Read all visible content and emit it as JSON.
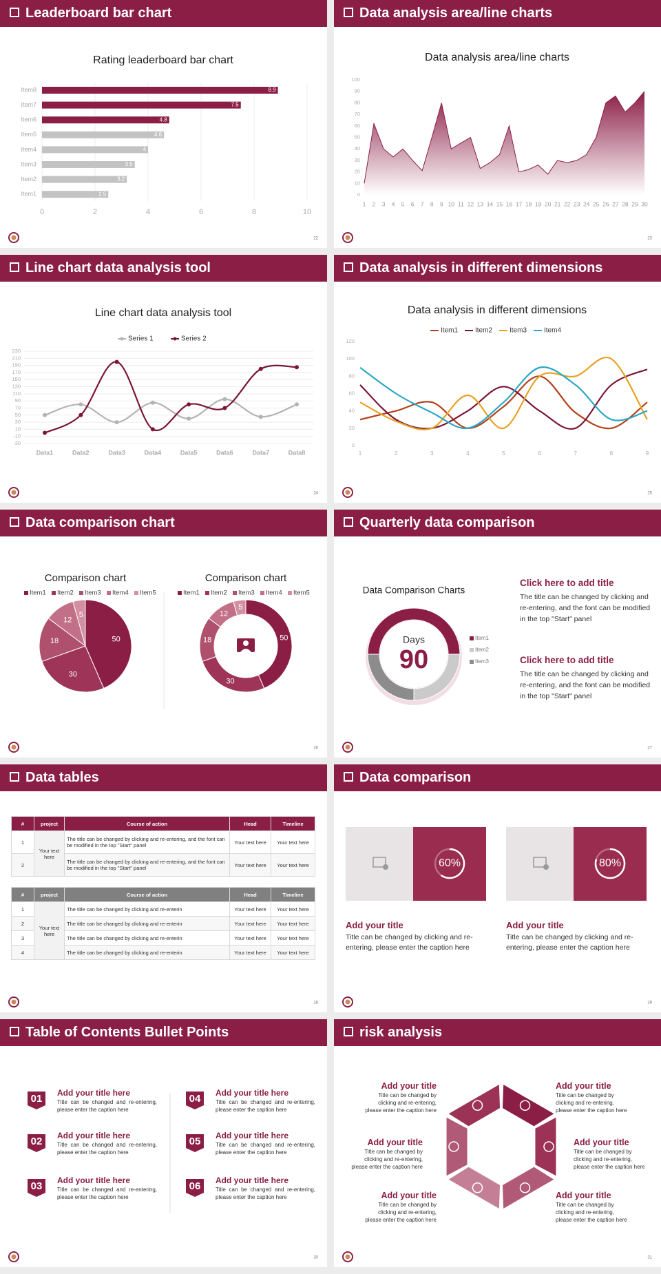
{
  "slides": [
    {
      "heading": "Leaderboard bar chart",
      "page": "22",
      "chart": {
        "type": "bar",
        "orientation": "horizontal",
        "title": "Rating leaderboard bar chart",
        "categories": [
          "Item8",
          "Item7",
          "Item6",
          "Item5",
          "Item4",
          "Item3",
          "Item2",
          "Item1"
        ],
        "values": [
          8.9,
          7.5,
          4.8,
          4.6,
          4,
          3.5,
          3.2,
          2.5
        ],
        "colors": [
          "#8b1e45",
          "#8b1e45",
          "#8b1e45",
          "#c3c3c3",
          "#c3c3c3",
          "#c3c3c3",
          "#c3c3c3",
          "#c3c3c3"
        ],
        "xlim": [
          0,
          10
        ],
        "xticks": [
          0,
          2,
          4,
          6,
          8,
          10
        ],
        "grid": true
      }
    },
    {
      "heading": "Data analysis area/line charts",
      "page": "23",
      "chart": {
        "type": "area",
        "title": "Data analysis area/line charts",
        "color": "#8b1e45",
        "categories": [
          "1",
          "2",
          "3",
          "4",
          "5",
          "6",
          "7",
          "8",
          "9",
          "10",
          "11",
          "12",
          "13",
          "14",
          "15",
          "16",
          "17",
          "18",
          "19",
          "20",
          "21",
          "22",
          "23",
          "24",
          "25",
          "26",
          "27",
          "28",
          "29",
          "30"
        ],
        "values": [
          10,
          62,
          40,
          33,
          40,
          30,
          21,
          50,
          80,
          40,
          45,
          50,
          23,
          28,
          35,
          60,
          20,
          22,
          26,
          18,
          30,
          28,
          30,
          35,
          50,
          80,
          86,
          72,
          80,
          90
        ],
        "ylim": [
          0,
          100
        ],
        "yticks": [
          0,
          10,
          20,
          30,
          40,
          50,
          60,
          70,
          80,
          90,
          100
        ]
      }
    },
    {
      "heading": "Line chart data analysis tool",
      "page": "24",
      "chart": {
        "type": "line",
        "title": "Line chart data analysis tool",
        "categories": [
          "Data1",
          "Data2",
          "Data3",
          "Data4",
          "Data5",
          "Data6",
          "Data7",
          "Data8"
        ],
        "series": [
          {
            "name": "Series 1",
            "color": "#b3b3b3",
            "values": [
              50,
              80,
              30,
              85,
              40,
              95,
              45,
              80
            ]
          },
          {
            "name": "Series 2",
            "color": "#7a1535",
            "values": [
              0,
              50,
              200,
              10,
              80,
              70,
              180,
              185
            ]
          }
        ],
        "ylim": [
          -30,
          230
        ],
        "yticks": [
          -30,
          -10,
          10,
          30,
          50,
          70,
          90,
          110,
          130,
          150,
          170,
          190,
          210,
          230
        ],
        "grid": true
      }
    },
    {
      "heading": "Data analysis in different dimensions",
      "page": "25",
      "chart": {
        "type": "line",
        "title": "Data analysis in different dimensions",
        "x": [
          1,
          2,
          3,
          4,
          5,
          6,
          7,
          8,
          9
        ],
        "xlim": [
          1,
          9
        ],
        "xticks": [
          1,
          2,
          3,
          4,
          5,
          6,
          7,
          8,
          9
        ],
        "series": [
          {
            "name": "Item1",
            "color": "#b5401b",
            "values": [
              30,
              40,
              50,
              20,
              45,
              80,
              38,
              20,
              50
            ]
          },
          {
            "name": "Item2",
            "color": "#7a1535",
            "values": [
              70,
              30,
              20,
              40,
              68,
              40,
              20,
              70,
              88
            ]
          },
          {
            "name": "Item3",
            "color": "#e8a020",
            "values": [
              50,
              28,
              20,
              58,
              20,
              80,
              80,
              100,
              30
            ]
          },
          {
            "name": "Item4",
            "color": "#2aa8c4",
            "values": [
              90,
              60,
              38,
              20,
              50,
              90,
              70,
              30,
              40
            ]
          }
        ],
        "ylim": [
          0,
          120
        ],
        "yticks": [
          0,
          20,
          40,
          60,
          80,
          100,
          120
        ],
        "grid": false
      }
    },
    {
      "heading": "Data comparison chart",
      "page": "26",
      "charts": [
        {
          "type": "pie",
          "title": "Comparison chart",
          "categories": [
            "Item1",
            "Item2",
            "Item3",
            "Item4",
            "Item5"
          ],
          "values": [
            50,
            30,
            18,
            12,
            5
          ],
          "colors": [
            "#8b1e45",
            "#9e3558",
            "#b0506f",
            "#c27087",
            "#d490a3"
          ]
        },
        {
          "type": "donut",
          "title": "Comparison chart",
          "categories": [
            "Item1",
            "Item2",
            "Item3",
            "Item4",
            "Item5"
          ],
          "values": [
            50,
            30,
            18,
            12,
            5
          ],
          "colors": [
            "#8b1e45",
            "#9e3558",
            "#b0506f",
            "#c27087",
            "#d490a3"
          ]
        }
      ]
    },
    {
      "heading": "Quarterly data comparison",
      "page": "27",
      "chart": {
        "type": "donut",
        "title": "Data Comparison Charts",
        "center_label": "Days",
        "center_value": 90,
        "categories": [
          "Item1",
          "Item2",
          "Item3"
        ],
        "values": [
          50,
          25,
          25
        ],
        "colors": [
          "#8b1e45",
          "#cacaca",
          "#8c8c8c"
        ]
      },
      "blocks": [
        {
          "title": "Click here to add title",
          "text": "The title can be changed by clicking and re-entering, and the font can be modified in the top \"Start\" panel"
        },
        {
          "title": "Click here to add title",
          "text": "The title can be changed by clicking and re-entering, and the font can be modified in the top \"Start\" panel"
        }
      ]
    },
    {
      "heading": "Data tables",
      "page": "28",
      "tables": [
        {
          "header": [
            "#",
            "project",
            "Course of action",
            "Head",
            "Timeline"
          ],
          "project": "Your text here",
          "rows": [
            [
              "1",
              "The title can be changed by clicking and re-entering, and the font can be modified in the top \"Start\" panel",
              "Your text here",
              "Your text here"
            ],
            [
              "2",
              "The title can be changed by clicking and re-entering, and the font can be modified in the top \"Start\" panel",
              "Your text here",
              "Your text here"
            ]
          ]
        },
        {
          "header": [
            "#",
            "project",
            "Course of action",
            "Head",
            "Timeline"
          ],
          "project": "Your text here",
          "rows": [
            [
              "1",
              "The title can be changed by clicking and re-enterin",
              "Your text here",
              "Your text here"
            ],
            [
              "2",
              "The title can be changed by clicking and re-enterin",
              "Your text here",
              "Your text here"
            ],
            [
              "3",
              "The title can be changed by clicking and re-enterin",
              "Your text here",
              "Your text here"
            ],
            [
              "4",
              "The title can be changed by clicking and re-enterin",
              "Your text here",
              "Your text here"
            ]
          ]
        }
      ]
    },
    {
      "heading": "Data comparison",
      "page": "29",
      "cards": [
        {
          "value": 60,
          "value_label": "60%",
          "title": "Add your title",
          "text": "Title can be changed by clicking and re-entering, please enter the caption here"
        },
        {
          "value": 80,
          "value_label": "80%",
          "title": "Add your title",
          "text": "Title can be changed by clicking and re-entering, please enter the caption here"
        }
      ]
    },
    {
      "heading": "Table of Contents Bullet Points",
      "page": "30",
      "items": [
        {
          "number": "01",
          "title": "Add your title here",
          "text": "Title can be changed and re-entering, please enter the caption here"
        },
        {
          "number": "02",
          "title": "Add your title here",
          "text": "Title can be changed and re-entering, please enter the caption here"
        },
        {
          "number": "03",
          "title": "Add your title here",
          "text": "Title can be changed and re-entering, please enter the caption here"
        },
        {
          "number": "04",
          "title": "Add your title here",
          "text": "Title can be changed and re-entering, please enter the caption here"
        },
        {
          "number": "05",
          "title": "Add your title here",
          "text": "Title can be changed and re-entering, please enter the caption here"
        },
        {
          "number": "06",
          "title": "Add your title here",
          "text": "Title can be changed and re-entering, please enter the caption here"
        }
      ]
    },
    {
      "heading": "risk analysis",
      "page": "31",
      "items": [
        {
          "title": "Add your title",
          "text": "Title can be changed by clicking and re-entering, please enter the caption here"
        },
        {
          "title": "Add your title",
          "text": "Title can be changed by clicking and re-entering, please enter the caption here"
        },
        {
          "title": "Add your title",
          "text": "Title can be changed by clicking and re-entering, please enter the caption here"
        },
        {
          "title": "Add your title",
          "text": "Title can be changed by clicking and re-entering, please enter the caption here"
        },
        {
          "title": "Add your title",
          "text": "Title can be changed by clicking and re-entering, please enter the caption here"
        },
        {
          "title": "Add your title",
          "text": "Title can be changed by clicking and re-entering, please enter the caption here"
        }
      ]
    }
  ]
}
